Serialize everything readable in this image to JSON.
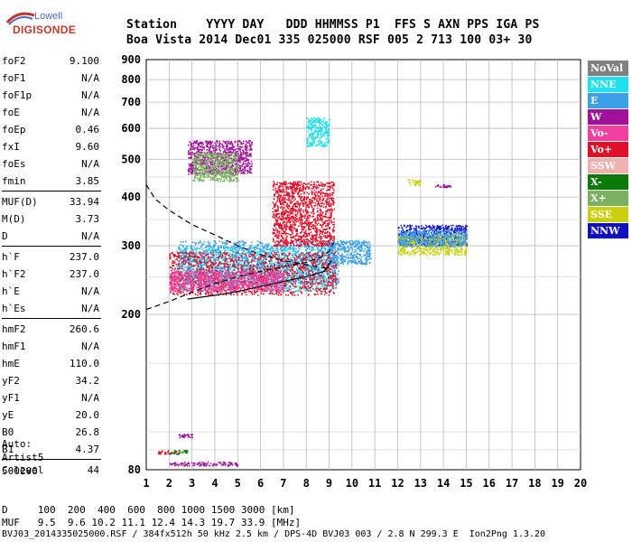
{
  "logo": {
    "brand": "Lowell",
    "name": "DIGISONDE"
  },
  "header": {
    "row1": "Station    YYYY DAY   DDD HHMMSS P1  FFS S AXN PPS IGA PS",
    "row2": "Boa Vista 2014 Dec01 335 025000 RSF 005 2 713 100 03+ 30"
  },
  "params": {
    "group1": [
      {
        "k": "foF2",
        "v": "9.100"
      },
      {
        "k": "foF1",
        "v": "N/A"
      },
      {
        "k": "foF1p",
        "v": "N/A"
      },
      {
        "k": "foE",
        "v": "N/A"
      },
      {
        "k": "foEp",
        "v": "0.46"
      },
      {
        "k": "fxI",
        "v": "9.60"
      },
      {
        "k": "foEs",
        "v": "N/A"
      },
      {
        "k": "fmin",
        "v": "3.85"
      }
    ],
    "group2": [
      {
        "k": "MUF(D)",
        "v": "33.94"
      },
      {
        "k": "M(D)",
        "v": "3.73"
      },
      {
        "k": "D",
        "v": "N/A"
      }
    ],
    "group3": [
      {
        "k": "h`F",
        "v": "237.0"
      },
      {
        "k": "h`F2",
        "v": "237.0"
      },
      {
        "k": "h`E",
        "v": "N/A"
      },
      {
        "k": "h`Es",
        "v": "N/A"
      }
    ],
    "group4": [
      {
        "k": "hmF2",
        "v": "260.6"
      },
      {
        "k": "hmF1",
        "v": "N/A"
      },
      {
        "k": "hmE",
        "v": "110.0"
      },
      {
        "k": "yF2",
        "v": "34.2"
      },
      {
        "k": "yF1",
        "v": "N/A"
      },
      {
        "k": "yE",
        "v": "20.0"
      },
      {
        "k": "B0",
        "v": "26.8"
      },
      {
        "k": "B1",
        "v": "4.37"
      }
    ],
    "group5": [
      {
        "k": "C-level",
        "v": "44"
      }
    ],
    "auto": "Auto:\nArtist5\n500200"
  },
  "legend": [
    {
      "label": "NoVal",
      "color": "#808080"
    },
    {
      "label": "NNE",
      "color": "#1ee0f0"
    },
    {
      "label": "E",
      "color": "#3aa0e8"
    },
    {
      "label": "W",
      "color": "#a0109a"
    },
    {
      "label": "Vo-",
      "color": "#f040a0"
    },
    {
      "label": "Vo+",
      "color": "#e0102a"
    },
    {
      "label": "SSW",
      "color": "#f0b0b0"
    },
    {
      "label": "X-",
      "color": "#0a7a0a"
    },
    {
      "label": "X+",
      "color": "#7ab060"
    },
    {
      "label": "SSE",
      "color": "#c8d010"
    },
    {
      "label": "NNW",
      "color": "#1010c0"
    }
  ],
  "bottom": {
    "row1": "D     100  200  400  600  800 1000 1500 3000 [km]",
    "row2": "MUF   9.5  9.6 10.2 11.1 12.4 14.3 19.7 33.9 [MHz]"
  },
  "footer": "BVJ03_2014335025000.RSF / 384fx512h 50 kHz 2.5 km / DPS-4D BVJ03 003 / 2.8 N 299.3 E  Ion2Png 1.3.20",
  "chart_data": {
    "type": "scatter",
    "x_ticks": [
      "1",
      "2",
      "3",
      "4",
      "5",
      "6",
      "7",
      "8",
      "9",
      "10",
      "11",
      "12",
      "13",
      "14",
      "15",
      "16",
      "17",
      "18",
      "19",
      "20"
    ],
    "y_ticks": [
      "80",
      "200",
      "300",
      "400",
      "500",
      "600",
      "700",
      "800",
      "900"
    ],
    "xlim": [
      1,
      20
    ],
    "ylim": [
      80,
      900
    ],
    "y_scale": "log",
    "grid": true,
    "clusters": [
      {
        "color": "#1ee0f0",
        "x": [
          2.3,
          9.2
        ],
        "y": [
          230,
          300
        ]
      },
      {
        "color": "#3aa0e8",
        "x": [
          2.4,
          9.4
        ],
        "y": [
          240,
          310
        ]
      },
      {
        "color": "#e0102a",
        "x": [
          2.0,
          9.3
        ],
        "y": [
          225,
          290
        ]
      },
      {
        "color": "#f040a0",
        "x": [
          2.0,
          7.0
        ],
        "y": [
          230,
          260
        ]
      },
      {
        "color": "#e0102a",
        "x": [
          6.5,
          9.2
        ],
        "y": [
          300,
          440
        ]
      },
      {
        "color": "#a0109a",
        "x": [
          2.8,
          5.6
        ],
        "y": [
          460,
          560
        ]
      },
      {
        "color": "#7ab060",
        "x": [
          3.0,
          5.0
        ],
        "y": [
          440,
          520
        ]
      },
      {
        "color": "#1ee0f0",
        "x": [
          8.0,
          9.0
        ],
        "y": [
          540,
          640
        ]
      },
      {
        "color": "#3aa0e8",
        "x": [
          9.0,
          10.8
        ],
        "y": [
          270,
          310
        ]
      },
      {
        "color": "#1010c0",
        "x": [
          12.0,
          15.0
        ],
        "y": [
          300,
          340
        ]
      },
      {
        "color": "#c8d010",
        "x": [
          12.0,
          15.0
        ],
        "y": [
          285,
          320
        ]
      },
      {
        "color": "#3aa0e8",
        "x": [
          12.0,
          15.0
        ],
        "y": [
          300,
          330
        ]
      },
      {
        "color": "#c8d010",
        "x": [
          12.4,
          13.0
        ],
        "y": [
          430,
          445
        ]
      },
      {
        "color": "#a0109a",
        "x": [
          13.6,
          14.3
        ],
        "y": [
          425,
          432
        ]
      },
      {
        "color": "#a0109a",
        "x": [
          2.0,
          5.0
        ],
        "y": [
          82,
          84
        ]
      },
      {
        "color": "#e0102a",
        "x": [
          1.5,
          2.4
        ],
        "y": [
          88,
          90
        ]
      },
      {
        "color": "#0a7a0a",
        "x": [
          2.0,
          2.8
        ],
        "y": [
          88,
          90
        ]
      },
      {
        "color": "#a0109a",
        "x": [
          2.4,
          3.0
        ],
        "y": [
          97,
          99
        ]
      }
    ],
    "curves": [
      {
        "style": "solid",
        "x": [
          2.8,
          4.0,
          5.0,
          6.0,
          7.0,
          8.0,
          8.8,
          9.1
        ],
        "y": [
          219,
          224,
          229,
          236,
          243,
          250,
          258,
          275
        ]
      },
      {
        "style": "dashed",
        "x": [
          1.0,
          2.0,
          3.0,
          4.0,
          5.0,
          6.0,
          7.0,
          8.0,
          8.6,
          9.0,
          9.2
        ],
        "y": [
          206,
          216,
          228,
          240,
          250,
          258,
          265,
          272,
          280,
          290,
          305
        ]
      },
      {
        "style": "dashed",
        "x": [
          1.0,
          1.4,
          2.0,
          3.0,
          4.0,
          5.0,
          6.0,
          7.0,
          8.0,
          9.0
        ],
        "y": [
          430,
          395,
          370,
          340,
          320,
          300,
          285,
          275,
          268,
          262
        ]
      }
    ]
  }
}
